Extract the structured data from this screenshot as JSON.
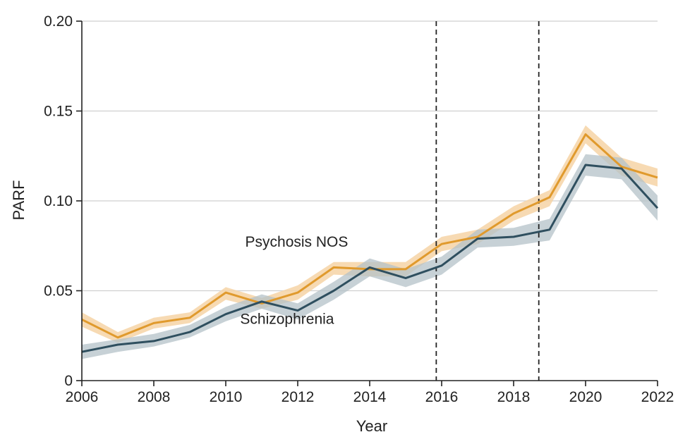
{
  "chart_data": {
    "type": "line",
    "title": "",
    "xlabel": "Year",
    "ylabel": "PARF",
    "xlim": [
      2006,
      2022
    ],
    "ylim": [
      0,
      0.2
    ],
    "x_ticks": [
      2006,
      2008,
      2010,
      2012,
      2014,
      2016,
      2018,
      2020,
      2022
    ],
    "x_tick_labels": [
      "2006",
      "2008",
      "2010",
      "2012",
      "2014",
      "2016",
      "2018",
      "2020",
      "2022"
    ],
    "y_ticks": [
      0,
      0.05,
      0.1,
      0.15,
      0.2
    ],
    "y_tick_labels": [
      "0",
      "0.05",
      "0.10",
      "0.15",
      "0.20"
    ],
    "grid": "horizontal",
    "legend": "none (series labeled directly on chart)",
    "vertical_reference_lines": [
      2015.85,
      2018.7
    ],
    "x": [
      2006,
      2007,
      2008,
      2009,
      2010,
      2011,
      2012,
      2013,
      2014,
      2015,
      2016,
      2017,
      2018,
      2019,
      2020,
      2021,
      2022
    ],
    "series": [
      {
        "name": "Psychosis NOS",
        "color": "#E09A2D",
        "band_color": "#F6D3A6",
        "values": [
          0.034,
          0.024,
          0.032,
          0.035,
          0.049,
          0.043,
          0.049,
          0.063,
          0.062,
          0.062,
          0.076,
          0.08,
          0.093,
          0.102,
          0.137,
          0.119,
          0.113
        ],
        "lower": [
          0.03,
          0.021,
          0.029,
          0.032,
          0.045,
          0.04,
          0.045,
          0.059,
          0.058,
          0.058,
          0.072,
          0.076,
          0.089,
          0.097,
          0.132,
          0.114,
          0.108
        ],
        "upper": [
          0.038,
          0.027,
          0.035,
          0.038,
          0.052,
          0.046,
          0.053,
          0.066,
          0.066,
          0.066,
          0.08,
          0.084,
          0.097,
          0.106,
          0.142,
          0.124,
          0.118
        ]
      },
      {
        "name": "Schizophrenia",
        "color": "#2F4F5F",
        "band_color": "#B4C2C8",
        "values": [
          0.016,
          0.02,
          0.022,
          0.027,
          0.037,
          0.044,
          0.039,
          0.05,
          0.063,
          0.057,
          0.064,
          0.079,
          0.08,
          0.084,
          0.12,
          0.118,
          0.096
        ],
        "lower": [
          0.012,
          0.016,
          0.019,
          0.024,
          0.033,
          0.04,
          0.034,
          0.045,
          0.058,
          0.052,
          0.059,
          0.074,
          0.075,
          0.078,
          0.114,
          0.112,
          0.089
        ],
        "upper": [
          0.02,
          0.023,
          0.026,
          0.031,
          0.041,
          0.048,
          0.043,
          0.055,
          0.068,
          0.062,
          0.069,
          0.084,
          0.085,
          0.09,
          0.126,
          0.124,
          0.103
        ]
      }
    ],
    "annotations": [
      {
        "text": "Psychosis NOS",
        "x": 2013.4,
        "y": 0.0745,
        "anchor": "end"
      },
      {
        "text": "Schizophrenia",
        "x": 2010.4,
        "y": 0.0315,
        "anchor": "start"
      }
    ]
  }
}
